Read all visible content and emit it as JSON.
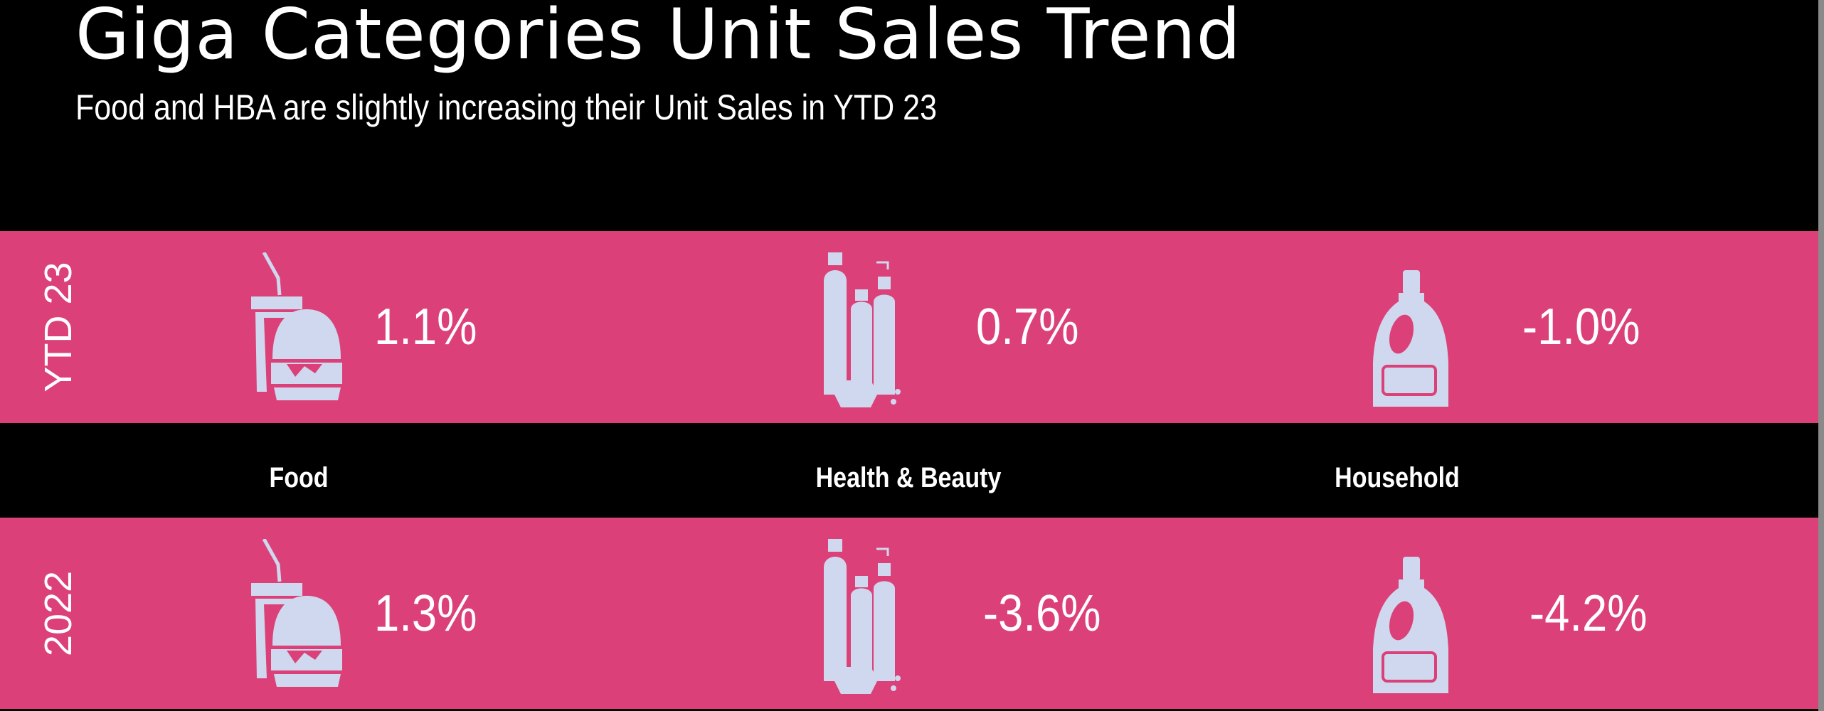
{
  "header": {
    "title": "Giga Categories Unit Sales Trend",
    "subtitle": "Food and HBA are slightly increasing their Unit Sales in YTD 23"
  },
  "colors": {
    "band": "#DB4178",
    "icon": "#CFD8EE",
    "background": "#000000"
  },
  "categories": [
    {
      "label": "Food",
      "icon": "drink-and-burger-icon"
    },
    {
      "label": "Health & Beauty",
      "icon": "bottles-and-soap-icon"
    },
    {
      "label": "Household",
      "icon": "detergent-bottle-icon"
    }
  ],
  "rows": [
    {
      "label": "YTD 23",
      "values": [
        "1.1%",
        "0.7%",
        "-1.0%"
      ]
    },
    {
      "label": "2022",
      "values": [
        "1.3%",
        "-3.6%",
        "-4.2%"
      ]
    }
  ]
}
